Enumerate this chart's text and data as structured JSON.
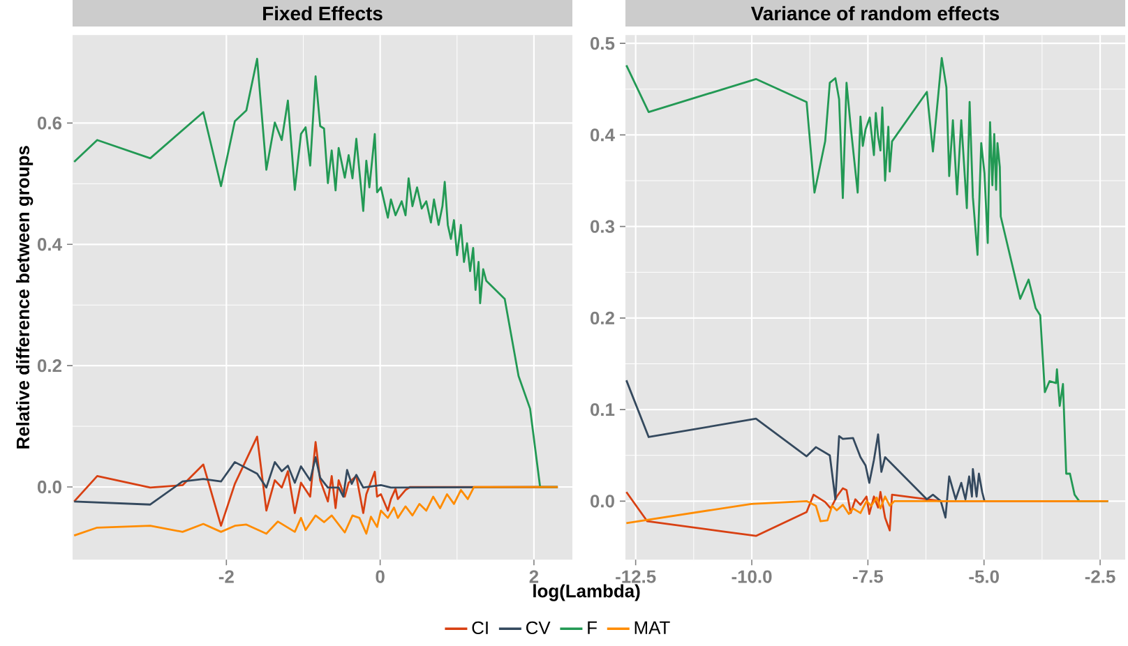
{
  "chart_data": [
    {
      "type": "line",
      "title": "Fixed Effects",
      "xlabel": "log(Lambda)",
      "ylabel": "Relative difference between groups",
      "xlim": [
        -4.0,
        2.5
      ],
      "ylim": [
        -0.12,
        0.745
      ],
      "xticks": [
        -2,
        0,
        2
      ],
      "yticks": [
        {
          "value": 0,
          "label": "0.0"
        },
        {
          "value": 0.2,
          "label": "0.2"
        },
        {
          "value": 0.4,
          "label": "0.4"
        },
        {
          "value": 0.6,
          "label": "0.6"
        }
      ],
      "grid": true,
      "legend": "bottom",
      "marker": "none",
      "line_style": "solid",
      "series": [
        {
          "name": "CI",
          "color": "#d84012",
          "x": [
            -3.98,
            -3.68,
            -2.99,
            -2.57,
            -2.3,
            -2.07,
            -1.89,
            -1.6,
            -1.48,
            -1.37,
            -1.28,
            -1.2,
            -1.11,
            -1.03,
            -0.91,
            -0.84,
            -0.78,
            -0.68,
            -0.63,
            -0.58,
            -0.54,
            -0.46,
            -0.41,
            -0.31,
            -0.22,
            -0.18,
            -0.07,
            -0.04,
            0.01,
            0.1,
            0.14,
            0.2,
            0.23,
            0.33,
            0.39,
            2.31
          ],
          "values": [
            -0.024,
            0.018,
            -0.001,
            0.003,
            0.037,
            -0.064,
            0.005,
            0.083,
            -0.039,
            0.011,
            -0.001,
            0.026,
            -0.043,
            0.007,
            -0.016,
            0.074,
            0.011,
            -0.024,
            0.018,
            -0.035,
            0.011,
            -0.016,
            0.007,
            0.018,
            -0.043,
            -0.012,
            0.025,
            -0.016,
            -0.012,
            -0.039,
            -0.02,
            -0.003,
            -0.02,
            -0.005,
            0.0,
            0.0
          ]
        },
        {
          "name": "CV",
          "color": "#34495e",
          "x": [
            -3.98,
            -2.99,
            -2.57,
            -2.3,
            -2.07,
            -1.89,
            -1.6,
            -1.48,
            -1.37,
            -1.28,
            -1.2,
            -1.11,
            -1.03,
            -0.91,
            -0.84,
            -0.78,
            -0.68,
            -0.54,
            -0.48,
            -0.43,
            -0.37,
            -0.31,
            -0.22,
            0.01,
            0.14,
            2.31
          ],
          "values": [
            -0.024,
            -0.029,
            0.009,
            0.013,
            0.009,
            0.041,
            0.022,
            -0.001,
            0.041,
            0.026,
            0.035,
            0.007,
            0.034,
            0.011,
            0.049,
            0.015,
            -0.001,
            -0.001,
            -0.016,
            0.028,
            0.005,
            0.02,
            -0.001,
            0.003,
            -0.001,
            0.0
          ]
        },
        {
          "name": "F",
          "color": "#229954",
          "x": [
            -3.98,
            -3.68,
            -2.99,
            -2.3,
            -2.07,
            -1.89,
            -1.74,
            -1.6,
            -1.48,
            -1.37,
            -1.28,
            -1.2,
            -1.11,
            -1.03,
            -0.97,
            -0.91,
            -0.84,
            -0.78,
            -0.73,
            -0.68,
            -0.63,
            -0.58,
            -0.54,
            -0.46,
            -0.41,
            -0.36,
            -0.31,
            -0.22,
            -0.18,
            -0.14,
            -0.07,
            -0.04,
            0.01,
            0.1,
            0.14,
            0.2,
            0.28,
            0.33,
            0.37,
            0.42,
            0.48,
            0.54,
            0.6,
            0.66,
            0.7,
            0.76,
            0.81,
            0.84,
            0.88,
            0.92,
            0.96,
            1.0,
            1.05,
            1.09,
            1.13,
            1.17,
            1.21,
            1.24,
            1.28,
            1.3,
            1.34,
            1.38,
            1.62,
            1.8,
            1.95,
            2.08,
            2.31
          ],
          "values": [
            0.536,
            0.572,
            0.542,
            0.618,
            0.496,
            0.603,
            0.621,
            0.706,
            0.523,
            0.601,
            0.572,
            0.637,
            0.49,
            0.582,
            0.593,
            0.53,
            0.677,
            0.595,
            0.591,
            0.501,
            0.555,
            0.489,
            0.559,
            0.51,
            0.547,
            0.509,
            0.574,
            0.455,
            0.538,
            0.494,
            0.582,
            0.486,
            0.494,
            0.444,
            0.474,
            0.448,
            0.471,
            0.448,
            0.509,
            0.463,
            0.494,
            0.459,
            0.471,
            0.436,
            0.474,
            0.432,
            0.463,
            0.503,
            0.432,
            0.409,
            0.44,
            0.382,
            0.432,
            0.371,
            0.402,
            0.356,
            0.394,
            0.325,
            0.371,
            0.303,
            0.359,
            0.34,
            0.31,
            0.183,
            0.129,
            0.0,
            0.0
          ]
        },
        {
          "name": "MAT",
          "color": "#ff8c00",
          "x": [
            -3.98,
            -3.68,
            -2.99,
            -2.57,
            -2.3,
            -2.07,
            -1.89,
            -1.74,
            -1.48,
            -1.33,
            -1.11,
            -1.03,
            -0.97,
            -0.84,
            -0.73,
            -0.63,
            -0.46,
            -0.36,
            -0.27,
            -0.18,
            -0.12,
            -0.04,
            0.01,
            0.1,
            0.18,
            0.23,
            0.33,
            0.42,
            0.51,
            0.6,
            0.69,
            0.78,
            0.87,
            0.96,
            1.05,
            1.14,
            1.22,
            2.31
          ],
          "values": [
            -0.08,
            -0.067,
            -0.064,
            -0.074,
            -0.061,
            -0.074,
            -0.064,
            -0.062,
            -0.077,
            -0.057,
            -0.074,
            -0.051,
            -0.071,
            -0.047,
            -0.058,
            -0.047,
            -0.075,
            -0.047,
            -0.051,
            -0.077,
            -0.049,
            -0.066,
            -0.039,
            -0.051,
            -0.034,
            -0.051,
            -0.032,
            -0.047,
            -0.028,
            -0.039,
            -0.016,
            -0.035,
            -0.012,
            -0.028,
            -0.005,
            -0.02,
            0.0,
            0.0
          ]
        }
      ]
    },
    {
      "type": "line",
      "title": "Variance of random effects",
      "xlim": [
        -12.72,
        -1.96
      ],
      "ylim": [
        -0.064,
        0.509
      ],
      "xticks": [
        -12.5,
        {
          "value": -10,
          "label": "-10.0"
        },
        -7.5,
        {
          "value": -5,
          "label": "-5.0"
        },
        -2.5
      ],
      "yticks": [
        {
          "value": 0,
          "label": "0.0"
        },
        0.1,
        0.2,
        0.3,
        0.4,
        0.5
      ],
      "grid": true,
      "marker": "none",
      "line_style": "solid",
      "series": [
        {
          "color": "#d84012",
          "x": [
            -12.7,
            -12.25,
            -9.91,
            -8.82,
            -8.67,
            -8.42,
            -8.3,
            -8.17,
            -8.04,
            -7.96,
            -7.87,
            -7.77,
            -7.66,
            -7.53,
            -7.47,
            -7.37,
            -7.28,
            -7.23,
            -7.13,
            -7.03,
            -6.98,
            -6.23,
            -5.93,
            -2.33
          ],
          "values": [
            0.01,
            -0.022,
            -0.038,
            -0.012,
            0.007,
            -0.001,
            -0.008,
            0.005,
            0.014,
            0.012,
            -0.013,
            0.002,
            -0.004,
            0.005,
            -0.014,
            0.005,
            -0.007,
            0.01,
            -0.018,
            -0.032,
            0.007,
            0.002,
            0.0,
            0.0
          ]
        },
        {
          "color": "#34495e",
          "x": [
            -12.7,
            -12.22,
            -9.91,
            -8.82,
            -8.62,
            -8.32,
            -8.2,
            -8.12,
            -8.04,
            -7.82,
            -7.66,
            -7.55,
            -7.47,
            -7.37,
            -7.28,
            -7.21,
            -7.13,
            -7.03,
            -6.23,
            -6.1,
            -5.93,
            -5.83,
            -5.75,
            -5.61,
            -5.49,
            -5.4,
            -5.32,
            -5.26,
            -5.24,
            -5.16,
            -5.11,
            -5.04,
            -4.99
          ],
          "values": [
            0.132,
            0.07,
            0.09,
            0.049,
            0.059,
            0.05,
            0.002,
            0.071,
            0.068,
            0.069,
            0.048,
            0.039,
            0.02,
            0.045,
            0.073,
            0.032,
            0.048,
            0.043,
            0.002,
            0.007,
            0.0,
            -0.018,
            0.027,
            0.002,
            0.02,
            0.002,
            0.027,
            0.005,
            0.035,
            0.005,
            0.03,
            0.01,
            0.0
          ]
        },
        {
          "color": "#229954",
          "x": [
            -12.7,
            -12.22,
            -9.91,
            -8.82,
            -8.65,
            -8.42,
            -8.32,
            -8.2,
            -8.12,
            -8.04,
            -7.96,
            -7.87,
            -7.72,
            -7.66,
            -7.61,
            -7.55,
            -7.46,
            -7.37,
            -7.33,
            -7.28,
            -7.23,
            -7.19,
            -7.13,
            -7.06,
            -7.03,
            -6.98,
            -6.23,
            -6.1,
            -5.91,
            -5.81,
            -5.75,
            -5.67,
            -5.58,
            -5.49,
            -5.37,
            -5.31,
            -5.24,
            -5.14,
            -5.06,
            -4.99,
            -4.92,
            -4.87,
            -4.82,
            -4.78,
            -4.74,
            -4.71,
            -4.66,
            -4.64,
            -4.22,
            -4.04,
            -3.89,
            -3.79,
            -3.69,
            -3.59,
            -3.45,
            -3.43,
            -3.37,
            -3.3,
            -3.23,
            -3.15,
            -3.05,
            -2.95,
            -2.33
          ],
          "values": [
            0.476,
            0.425,
            0.461,
            0.436,
            0.337,
            0.393,
            0.457,
            0.462,
            0.439,
            0.331,
            0.457,
            0.409,
            0.337,
            0.42,
            0.388,
            0.406,
            0.419,
            0.378,
            0.424,
            0.398,
            0.383,
            0.43,
            0.35,
            0.409,
            0.36,
            0.393,
            0.447,
            0.382,
            0.484,
            0.452,
            0.355,
            0.416,
            0.335,
            0.416,
            0.32,
            0.436,
            0.332,
            0.269,
            0.391,
            0.358,
            0.282,
            0.414,
            0.345,
            0.401,
            0.34,
            0.391,
            0.365,
            0.311,
            0.221,
            0.242,
            0.211,
            0.203,
            0.119,
            0.131,
            0.129,
            0.144,
            0.104,
            0.128,
            0.03,
            0.03,
            0.007,
            0.0,
            0.0
          ]
        },
        {
          "color": "#ff8c00",
          "x": [
            -12.7,
            -10.01,
            -8.82,
            -8.62,
            -8.52,
            -8.37,
            -8.27,
            -8.17,
            -8.04,
            -7.91,
            -7.82,
            -7.66,
            -7.53,
            -7.43,
            -7.31,
            -7.23,
            -7.13,
            -7.03,
            -6.93,
            -2.33
          ],
          "values": [
            -0.024,
            -0.003,
            0.0,
            -0.005,
            -0.022,
            -0.021,
            -0.005,
            -0.01,
            -0.004,
            -0.014,
            -0.008,
            -0.013,
            0.0,
            -0.005,
            0.004,
            -0.008,
            0.005,
            -0.005,
            0.0,
            0.0
          ]
        }
      ]
    }
  ]
}
